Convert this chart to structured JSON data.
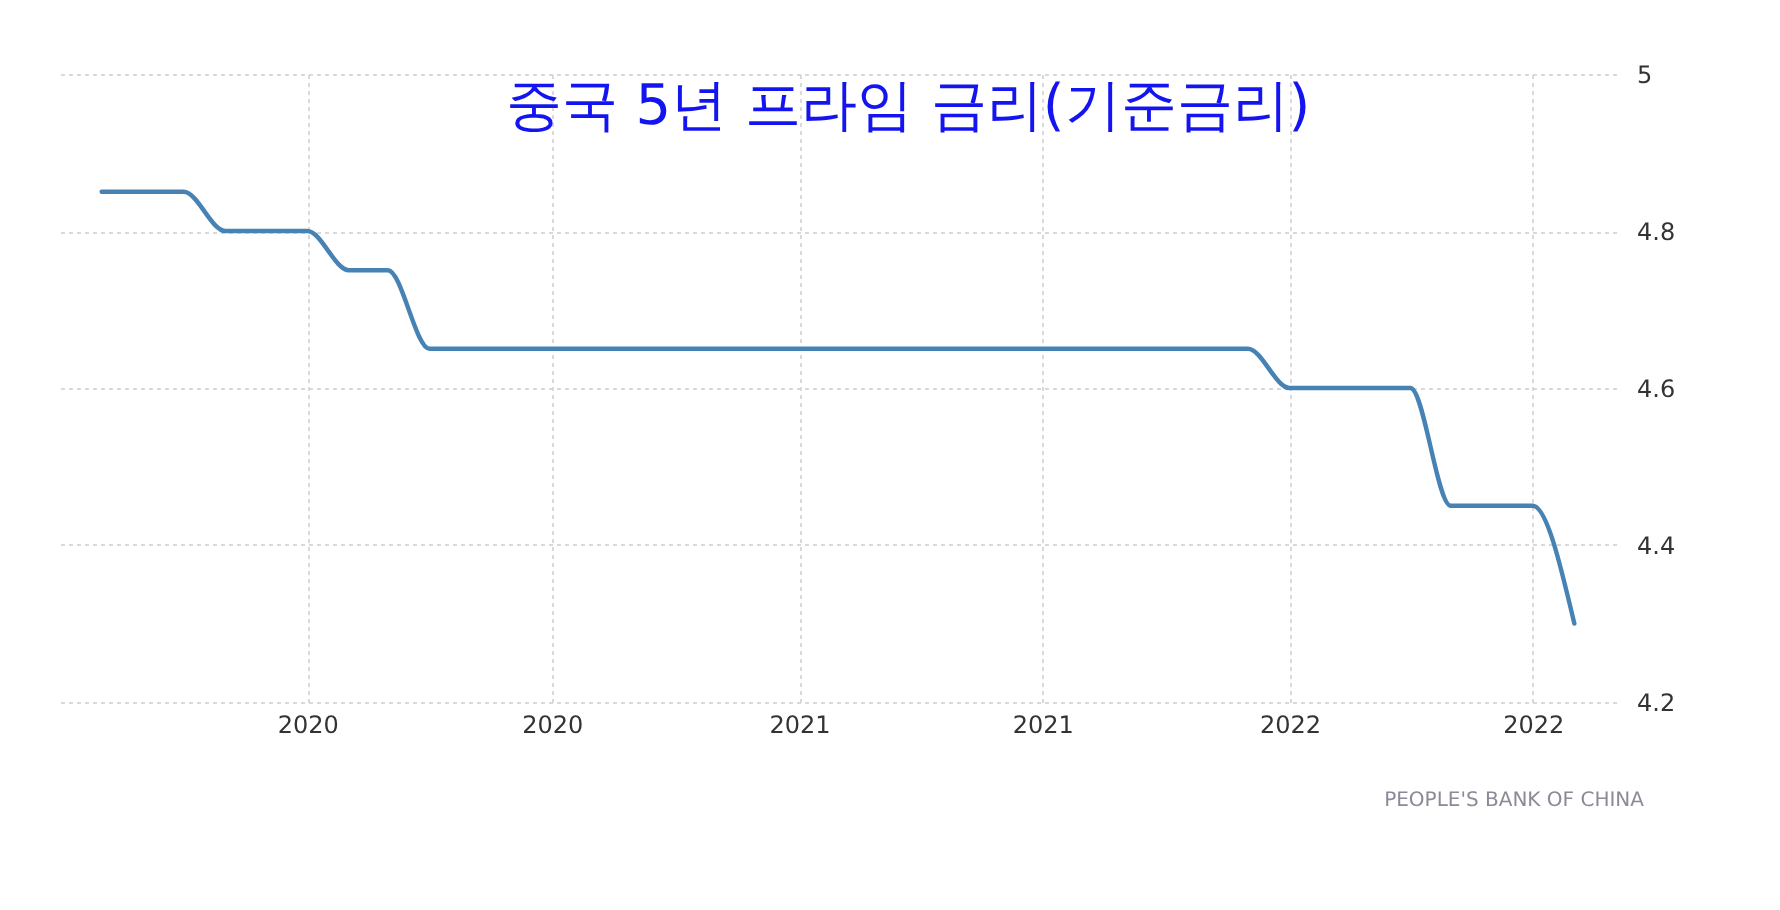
{
  "chart_data": {
    "type": "line",
    "title": "중국 5년 프라임 금리(기준금리)",
    "x": [
      "2019-08",
      "2019-09",
      "2019-10",
      "2019-11",
      "2019-12",
      "2020-01",
      "2020-02",
      "2020-03",
      "2020-04",
      "2020-05",
      "2020-06",
      "2020-07",
      "2020-08",
      "2020-09",
      "2020-10",
      "2020-11",
      "2020-12",
      "2021-01",
      "2021-02",
      "2021-03",
      "2021-04",
      "2021-05",
      "2021-06",
      "2021-07",
      "2021-08",
      "2021-09",
      "2021-10",
      "2021-11",
      "2021-12",
      "2022-01",
      "2022-02",
      "2022-03",
      "2022-04",
      "2022-05",
      "2022-06",
      "2022-07",
      "2022-08"
    ],
    "values": [
      4.85,
      4.85,
      4.85,
      4.8,
      4.8,
      4.8,
      4.75,
      4.75,
      4.65,
      4.65,
      4.65,
      4.65,
      4.65,
      4.65,
      4.65,
      4.65,
      4.65,
      4.65,
      4.65,
      4.65,
      4.65,
      4.65,
      4.65,
      4.65,
      4.65,
      4.65,
      4.65,
      4.65,
      4.65,
      4.6,
      4.6,
      4.6,
      4.6,
      4.45,
      4.45,
      4.45,
      4.3
    ],
    "color": "#4682b4",
    "line_style": "solid",
    "xlim": [
      "2019-07",
      "2022-09"
    ],
    "xticks": [
      {
        "value": "2020-01",
        "label": "2020"
      },
      {
        "value": "2020-07",
        "label": "2020"
      },
      {
        "value": "2021-01",
        "label": "2021"
      },
      {
        "value": "2021-07",
        "label": "2021"
      },
      {
        "value": "2022-01",
        "label": "2022"
      },
      {
        "value": "2022-07",
        "label": "2022"
      }
    ],
    "ylim": [
      4.2,
      5
    ],
    "yticks": [
      4.2,
      4.4,
      4.6,
      4.8,
      5
    ],
    "grid": true,
    "annotations": [
      "PEOPLE'S BANK OF CHINA"
    ]
  }
}
